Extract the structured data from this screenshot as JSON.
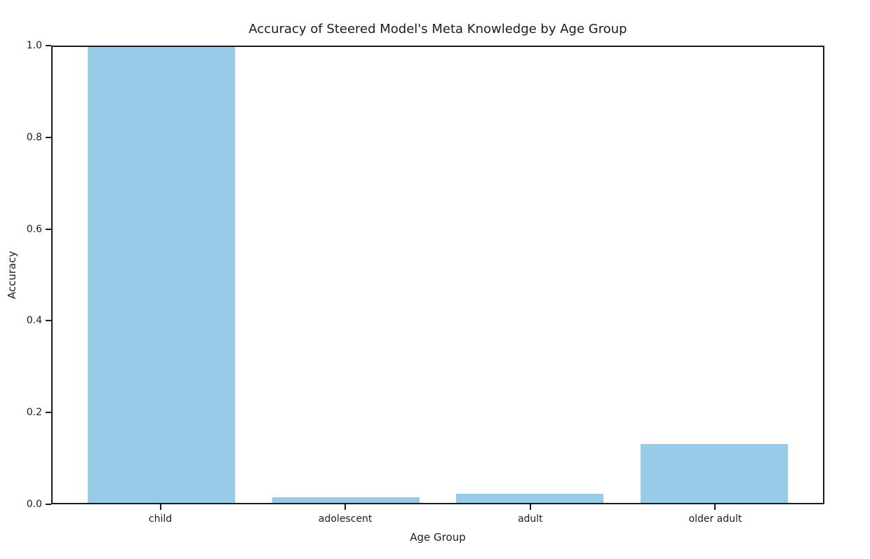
{
  "chart_data": {
    "type": "bar",
    "title": "Accuracy of Steered Model's Meta Knowledge by Age Group",
    "xlabel": "Age Group",
    "ylabel": "Accuracy",
    "categories": [
      "child",
      "adolescent",
      "adult",
      "older adult"
    ],
    "values": [
      1.0,
      0.013,
      0.02,
      0.13
    ],
    "ylim": [
      0.0,
      1.0
    ],
    "yticks": [
      0.0,
      0.2,
      0.4,
      0.6,
      0.8,
      1.0
    ],
    "ytick_labels": [
      "0.0",
      "0.2",
      "0.4",
      "0.6",
      "0.8",
      "1.0"
    ],
    "bar_color": "#97cbe8",
    "axis_color": "#1c1c1c",
    "text_color": "#1c1c1c",
    "background_color": "#ffffff",
    "grid": false,
    "legend_position": "none"
  }
}
